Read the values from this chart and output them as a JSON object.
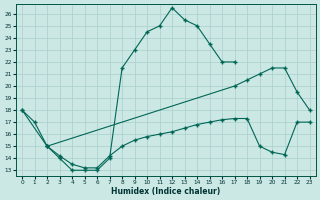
{
  "xlabel": "Humidex (Indice chaleur)",
  "bg_color": "#cce8e5",
  "line_color": "#006655",
  "grid_color": "#aacfcc",
  "xlim": [
    -0.5,
    23.5
  ],
  "ylim": [
    12.5,
    26.8
  ],
  "yticks": [
    13,
    14,
    15,
    16,
    17,
    18,
    19,
    20,
    21,
    22,
    23,
    24,
    25,
    26
  ],
  "xticks": [
    0,
    1,
    2,
    3,
    4,
    5,
    6,
    7,
    8,
    9,
    10,
    11,
    12,
    13,
    14,
    15,
    16,
    17,
    18,
    19,
    20,
    21,
    22,
    23
  ],
  "line1_x": [
    0,
    1,
    2,
    3,
    4,
    5,
    6,
    7,
    8,
    9,
    10,
    11,
    12,
    13,
    14,
    15,
    16,
    17
  ],
  "line1_y": [
    18,
    17,
    15,
    14,
    13,
    13,
    13,
    14,
    21.5,
    23,
    24.5,
    25,
    26.5,
    25.5,
    25,
    23.5,
    22,
    22
  ],
  "line2_x": [
    0,
    2,
    17,
    18,
    19,
    20,
    21,
    22,
    23
  ],
  "line2_y": [
    18,
    15,
    20,
    20.5,
    21,
    21.5,
    21.5,
    19.5,
    18
  ],
  "line3_x": [
    2,
    3,
    4,
    5,
    6,
    7,
    8,
    9,
    10,
    11,
    12,
    13,
    14,
    15,
    16,
    17,
    18,
    19,
    20,
    21,
    22,
    23
  ],
  "line3_y": [
    15,
    14.2,
    13.5,
    13.2,
    13.2,
    14.2,
    15.0,
    15.5,
    15.8,
    16.0,
    16.2,
    16.5,
    16.8,
    17.0,
    17.2,
    17.3,
    17.3,
    15.0,
    14.5,
    14.3,
    17.0,
    17.0
  ]
}
